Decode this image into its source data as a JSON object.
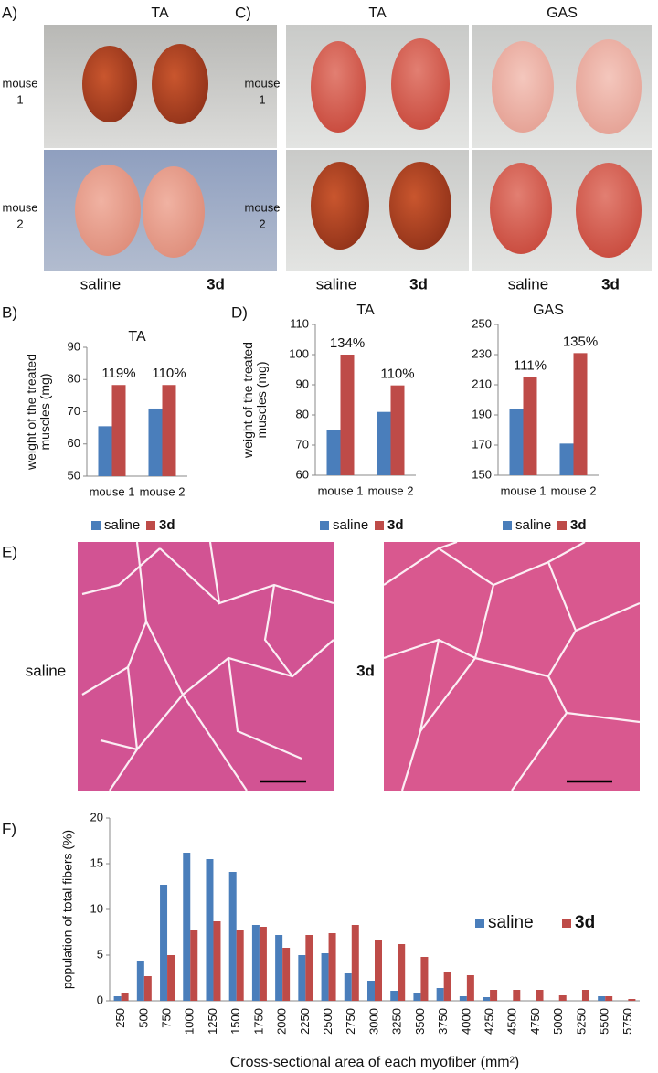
{
  "panel_labels": {
    "a": "A)",
    "b": "B)",
    "c": "C)",
    "d": "D)",
    "e": "E)",
    "f": "F)"
  },
  "panel_a": {
    "title": "TA",
    "rows": [
      [
        "mouse",
        "1"
      ],
      [
        "mouse",
        "2"
      ]
    ],
    "columns": [
      "saline",
      "3d"
    ]
  },
  "panel_c": {
    "titles": [
      "TA",
      "GAS"
    ],
    "rows": [
      [
        "mouse",
        "1"
      ],
      [
        "mouse",
        "2"
      ]
    ],
    "columns": [
      [
        "saline",
        "3d"
      ],
      [
        "saline",
        "3d"
      ]
    ]
  },
  "panel_e": {
    "labels": [
      "saline",
      "3d"
    ]
  },
  "chart_data": [
    {
      "type": "bar",
      "title": "TA",
      "ylabel": [
        "weight of the treated",
        "muscles (mg)"
      ],
      "categories": [
        "mouse 1",
        "mouse 2"
      ],
      "series": [
        {
          "name": "saline",
          "color": "#4a7ebb",
          "values": [
            65.5,
            71
          ]
        },
        {
          "name": "3d",
          "color": "#be4b48",
          "values": [
            78.3,
            78.3
          ]
        }
      ],
      "annotations": [
        "119%",
        "110%"
      ],
      "ylim": [
        50,
        90
      ],
      "yticks": [
        50,
        60,
        70,
        80,
        90
      ],
      "legend": "bottom"
    },
    {
      "type": "bar",
      "title": "TA",
      "ylabel": [
        "weight of the treated",
        "muscles (mg)"
      ],
      "categories": [
        "mouse 1",
        "mouse 2"
      ],
      "series": [
        {
          "name": "saline",
          "color": "#4a7ebb",
          "values": [
            75,
            81
          ]
        },
        {
          "name": "3d",
          "color": "#be4b48",
          "values": [
            100,
            89.8
          ]
        }
      ],
      "annotations": [
        "134%",
        "110%"
      ],
      "ylim": [
        60,
        110
      ],
      "yticks": [
        60,
        70,
        80,
        90,
        100,
        110
      ],
      "legend": "bottom"
    },
    {
      "type": "bar",
      "title": "GAS",
      "categories": [
        "mouse 1",
        "mouse 2"
      ],
      "series": [
        {
          "name": "saline",
          "color": "#4a7ebb",
          "values": [
            194,
            171
          ]
        },
        {
          "name": "3d",
          "color": "#be4b48",
          "values": [
            215,
            231
          ]
        }
      ],
      "annotations": [
        "111%",
        "135%"
      ],
      "ylim": [
        150,
        250
      ],
      "yticks": [
        150,
        170,
        190,
        210,
        230,
        250
      ],
      "legend": "bottom"
    },
    {
      "type": "bar",
      "ylabel": [
        "population of total fibers (%)"
      ],
      "xlabel": "Cross-sectional area of each myofiber (mm²)",
      "categories": [
        "250",
        "500",
        "750",
        "1000",
        "1250",
        "1500",
        "1750",
        "2000",
        "2250",
        "2500",
        "2750",
        "3000",
        "3250",
        "3500",
        "3750",
        "4000",
        "4250",
        "4500",
        "4750",
        "5000",
        "5250",
        "5500",
        "5750"
      ],
      "series": [
        {
          "name": "saline",
          "color": "#4a7ebb",
          "values": [
            0.5,
            4.3,
            12.7,
            16.2,
            15.5,
            14.1,
            8.3,
            7.2,
            5.0,
            5.2,
            3.0,
            2.2,
            1.1,
            0.8,
            1.4,
            0.5,
            0.4,
            0,
            0,
            0,
            0,
            0.5,
            0
          ]
        },
        {
          "name": "3d",
          "color": "#be4b48",
          "values": [
            0.8,
            2.7,
            5.0,
            7.7,
            8.7,
            7.7,
            8.1,
            5.8,
            7.2,
            7.4,
            8.3,
            6.7,
            6.2,
            4.8,
            3.1,
            2.8,
            1.2,
            1.2,
            1.2,
            0.6,
            1.2,
            0.5,
            0.2
          ]
        }
      ],
      "ylim": [
        0,
        20
      ],
      "yticks": [
        0,
        5,
        10,
        15,
        20
      ],
      "legend": "upper right"
    }
  ]
}
